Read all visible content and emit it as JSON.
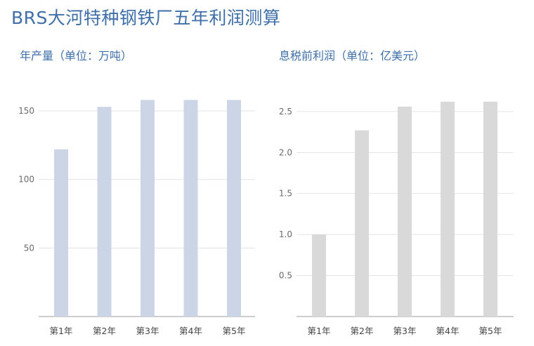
{
  "title": "BRS大河特种钢铁厂五年利润测算",
  "colors": {
    "title": "#3e6fa8",
    "bar_left": "#ccd5e6",
    "bar_right": "#d9d9d9",
    "grid": "#e3e3e3",
    "axis": "#bdbdbd"
  },
  "chart_data": [
    {
      "type": "bar",
      "title": "年产量（单位：万吨）",
      "categories": [
        "第1年",
        "第2年",
        "第3年",
        "第4年",
        "第5年"
      ],
      "values": [
        122,
        153,
        158,
        158,
        158
      ],
      "yticks": [
        "50",
        "100",
        "150"
      ],
      "ytick_values": [
        50,
        100,
        150
      ],
      "ylim": [
        0,
        170
      ],
      "grid": true,
      "xlabel": "",
      "ylabel": ""
    },
    {
      "type": "bar",
      "title": "息税前利润（单位：亿美元）",
      "categories": [
        "第1年",
        "第2年",
        "第3年",
        "第4年",
        "第5年"
      ],
      "values": [
        1.0,
        2.27,
        2.56,
        2.62,
        2.62
      ],
      "yticks": [
        "0.5",
        "1.0",
        "1.5",
        "2.0",
        "2.5"
      ],
      "ytick_values": [
        0.5,
        1.0,
        1.5,
        2.0,
        2.5
      ],
      "ylim": [
        0,
        2.85
      ],
      "grid": true,
      "xlabel": "",
      "ylabel": ""
    }
  ]
}
